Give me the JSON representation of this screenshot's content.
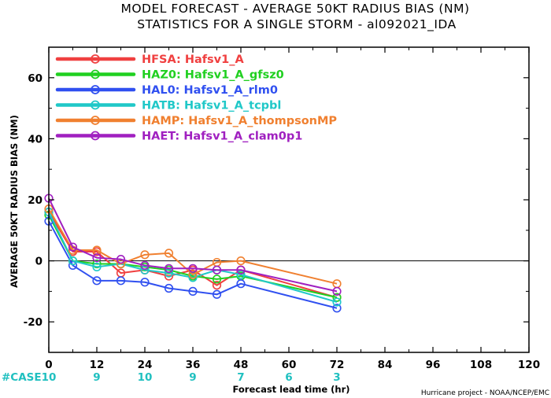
{
  "page": {
    "title_line1": "MODEL FORECAST - AVERAGE 50KT RADIUS BIAS (NM)",
    "title_line2": "STATISTICS FOR A SINGLE STORM - al092021_IDA",
    "case_label": "#CASE",
    "credit": "Hurricane project - NOAA/NCEP/EMC"
  },
  "chart_data": {
    "type": "line",
    "title": "MODEL FORECAST - AVERAGE 50KT RADIUS BIAS (NM)",
    "subtitle": "STATISTICS FOR A SINGLE STORM - al092021_IDA",
    "xlabel": "Forecast lead time (hr)",
    "ylabel": "AVERAGE 50KT RADIUS BIAS (NM)",
    "xlim": [
      0,
      120
    ],
    "ylim": [
      -30,
      70
    ],
    "xticks": [
      0,
      12,
      24,
      36,
      48,
      60,
      72,
      84,
      96,
      108,
      120
    ],
    "yticks": [
      -20,
      0,
      20,
      40,
      60
    ],
    "zero_line": true,
    "legend_position": "top-left",
    "cases": {
      "x": [
        0,
        12,
        24,
        36,
        48,
        60,
        72
      ],
      "values": [
        10,
        9,
        10,
        9,
        7,
        6,
        3
      ],
      "color": "#20c0c0"
    },
    "x": [
      0,
      6,
      12,
      18,
      24,
      30,
      36,
      42,
      48,
      72
    ],
    "series": [
      {
        "model": "HFSA:",
        "name": "Hafsv1_A",
        "color": "#f04040",
        "values": [
          16,
          3,
          3,
          -4,
          -3,
          -5,
          -3,
          -8,
          -3,
          -12
        ]
      },
      {
        "model": "HAZ0:",
        "name": "Hafsv1_A_gfsz0",
        "color": "#20d020",
        "values": [
          15,
          0,
          -1,
          -1,
          -2,
          -3,
          -5,
          -6,
          -5,
          -12
        ]
      },
      {
        "model": "HAL0:",
        "name": "Hafsv1_A_rlm0",
        "color": "#3050f0",
        "values": [
          13,
          -1.5,
          -6.5,
          -6.5,
          -7,
          -9,
          -10,
          -11,
          -7.5,
          -15.5
        ]
      },
      {
        "model": "HATB:",
        "name": "Hafsv1_A_tcpbl",
        "color": "#20c8c8",
        "values": [
          16,
          0,
          -2,
          -1,
          -3,
          -4,
          -5.5,
          -3,
          -4.5,
          -13.5
        ]
      },
      {
        "model": "HAMP:",
        "name": "Hafsv1_A_thompsonMP",
        "color": "#f08030",
        "values": [
          17,
          3.5,
          3.5,
          -1,
          2,
          2.5,
          -4.5,
          -0.5,
          0,
          -7.5
        ]
      },
      {
        "model": "HAET:",
        "name": "Hafsv1_A_clam0p1",
        "color": "#a020c0",
        "values": [
          20.5,
          4.5,
          1,
          0.5,
          -1.5,
          -2.5,
          -2.5,
          -3,
          -3,
          -10
        ]
      }
    ]
  }
}
